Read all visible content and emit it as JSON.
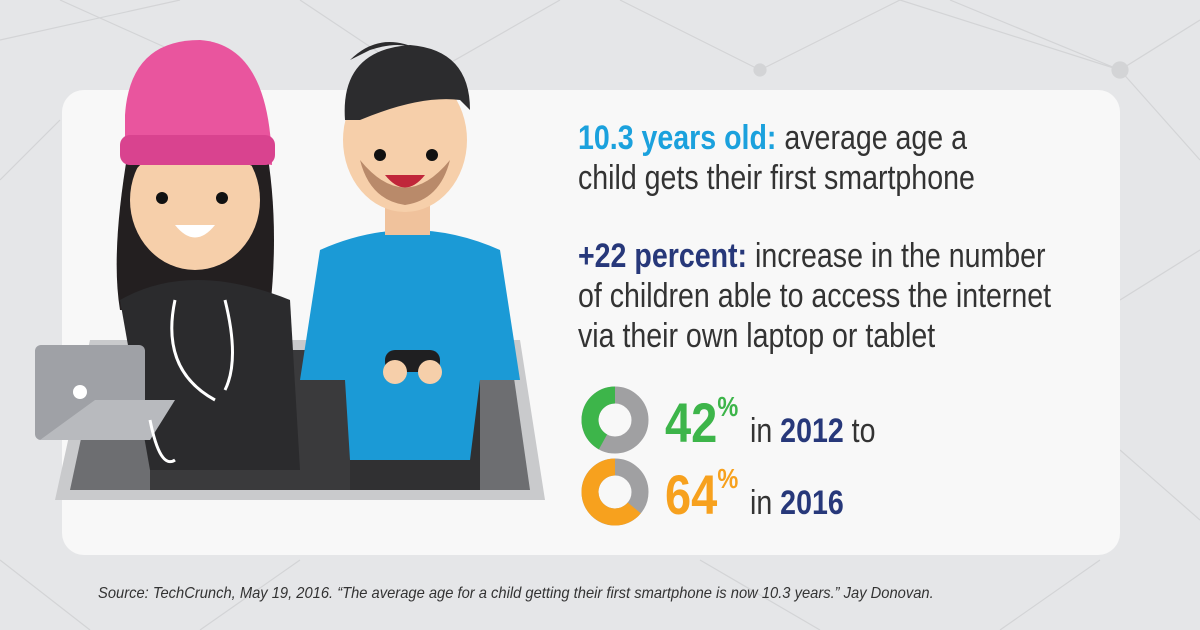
{
  "stats": [
    {
      "highlight": "10.3 years old:",
      "lines": [
        "average age a",
        "child gets their first smartphone"
      ],
      "color": "#1ba1dd"
    },
    {
      "highlight": "+22 percent:",
      "lines": [
        "increase in the number",
        "of children able to access the internet",
        "via their own laptop or tablet"
      ],
      "color": "#27387a"
    }
  ],
  "donuts": [
    {
      "value": 42,
      "unit": "%",
      "prefix": "in",
      "year": "2012",
      "suffix": "to",
      "color": "#3db54a"
    },
    {
      "value": 64,
      "unit": "%",
      "prefix": "in",
      "year": "2016",
      "color": "#f7a11e"
    }
  ],
  "source": "Source: TechCrunch, May 19, 2016. “The average age for a child getting their first smartphone is now 10.3 years.” Jay Donovan."
}
